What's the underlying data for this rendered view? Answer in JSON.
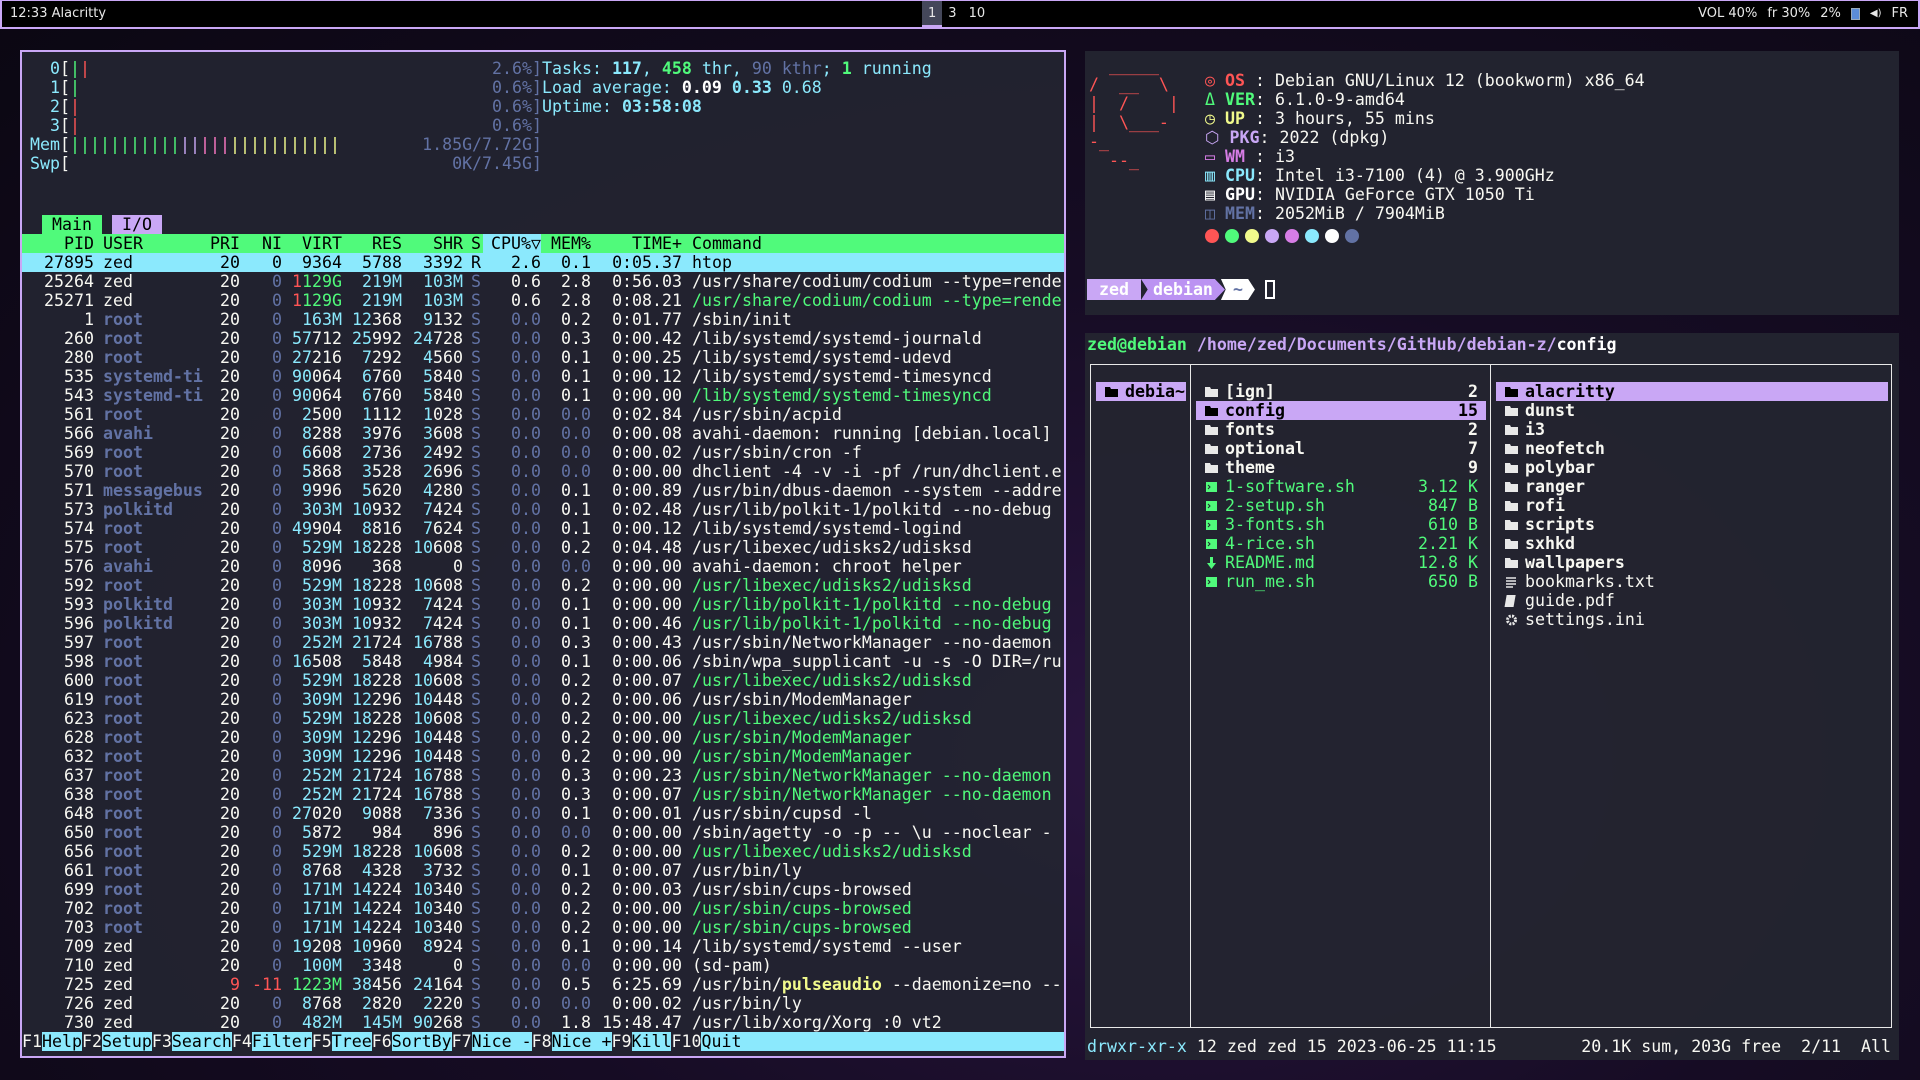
{
  "topbar": {
    "time": "12:33",
    "window": "Alacritty",
    "workspaces": [
      "1",
      "3",
      "10"
    ],
    "active_workspace": "1",
    "status": [
      "VOL 40%",
      "fr 30%",
      "2%",
      "FR"
    ]
  },
  "htop": {
    "cpus": [
      {
        "id": "0",
        "pct": "2.6%",
        "bars": [
          "#50fa7b",
          "#ff5555"
        ]
      },
      {
        "id": "1",
        "pct": "0.6%",
        "bars": [
          "#50fa7b"
        ]
      },
      {
        "id": "2",
        "pct": "0.6%",
        "bars": [
          "#ff5555"
        ]
      },
      {
        "id": "3",
        "pct": "0.6%",
        "bars": [
          "#ff5555"
        ]
      }
    ],
    "mem": {
      "label": "Mem",
      "value": "1.85G/7.72G",
      "segments": [
        {
          "color": "#50fa7b",
          "count": 11
        },
        {
          "color": "#c9a7f5",
          "count": 2
        },
        {
          "color": "#ff79c6",
          "count": 3
        },
        {
          "color": "#f1fa8c",
          "count": 11
        }
      ]
    },
    "swp": {
      "label": "Swp",
      "value": "0K/7.45G"
    },
    "tasks": {
      "label": "Tasks: ",
      "procs": "117",
      "threads": "458",
      "thr": " thr, ",
      "kthr": "90 kthr",
      "sep": "; ",
      "running": "1",
      "running_label": " running"
    },
    "load": {
      "label": "Load average: ",
      "one": "0.09",
      "five": "0.33",
      "fifteen": "0.68"
    },
    "uptime": {
      "label": "Uptime: ",
      "value": "03:58:08"
    },
    "tabs": [
      "Main",
      "I/O"
    ],
    "columns": [
      "PID",
      "USER",
      "PRI",
      "NI",
      "VIRT",
      "RES",
      "SHR",
      "S",
      "CPU%▽",
      "MEM%",
      "TIME+",
      "Command"
    ],
    "highlight_word": "pulseaudio",
    "rows": [
      [
        "27895",
        "zed",
        "20",
        "0",
        "9364",
        "5788",
        "3392",
        "R",
        "2.6",
        "0.1",
        "0:05.37",
        "htop",
        false
      ],
      [
        "25264",
        "zed",
        "20",
        "0",
        "1129G",
        "219M",
        "103M",
        "S",
        "0.6",
        "2.8",
        "0:56.03",
        "/usr/share/codium/codium --type=rende",
        false
      ],
      [
        "25271",
        "zed",
        "20",
        "0",
        "1129G",
        "219M",
        "103M",
        "S",
        "0.6",
        "2.8",
        "0:08.21",
        "/usr/share/codium/codium --type=rende",
        true
      ],
      [
        "1",
        "root",
        "20",
        "0",
        "163M",
        "12368",
        "9132",
        "S",
        "0.0",
        "0.2",
        "0:01.77",
        "/sbin/init",
        false
      ],
      [
        "260",
        "root",
        "20",
        "0",
        "57712",
        "25992",
        "24728",
        "S",
        "0.0",
        "0.3",
        "0:00.42",
        "/lib/systemd/systemd-journald",
        false
      ],
      [
        "280",
        "root",
        "20",
        "0",
        "27216",
        "7292",
        "4560",
        "S",
        "0.0",
        "0.1",
        "0:00.25",
        "/lib/systemd/systemd-udevd",
        false
      ],
      [
        "535",
        "systemd-ti",
        "20",
        "0",
        "90064",
        "6760",
        "5840",
        "S",
        "0.0",
        "0.1",
        "0:00.12",
        "/lib/systemd/systemd-timesyncd",
        false
      ],
      [
        "543",
        "systemd-ti",
        "20",
        "0",
        "90064",
        "6760",
        "5840",
        "S",
        "0.0",
        "0.1",
        "0:00.00",
        "/lib/systemd/systemd-timesyncd",
        true
      ],
      [
        "561",
        "root",
        "20",
        "0",
        "2500",
        "1112",
        "1028",
        "S",
        "0.0",
        "0.0",
        "0:02.84",
        "/usr/sbin/acpid",
        false
      ],
      [
        "566",
        "avahi",
        "20",
        "0",
        "8288",
        "3976",
        "3608",
        "S",
        "0.0",
        "0.0",
        "0:00.08",
        "avahi-daemon: running [debian.local]",
        false
      ],
      [
        "569",
        "root",
        "20",
        "0",
        "6608",
        "2736",
        "2492",
        "S",
        "0.0",
        "0.0",
        "0:00.02",
        "/usr/sbin/cron -f",
        false
      ],
      [
        "570",
        "root",
        "20",
        "0",
        "5868",
        "3528",
        "2696",
        "S",
        "0.0",
        "0.0",
        "0:00.00",
        "dhclient -4 -v -i -pf /run/dhclient.e",
        false
      ],
      [
        "571",
        "messagebus",
        "20",
        "0",
        "9996",
        "5620",
        "4280",
        "S",
        "0.0",
        "0.1",
        "0:00.89",
        "/usr/bin/dbus-daemon --system --addre",
        false
      ],
      [
        "573",
        "polkitd",
        "20",
        "0",
        "303M",
        "10932",
        "7424",
        "S",
        "0.0",
        "0.1",
        "0:02.48",
        "/usr/lib/polkit-1/polkitd --no-debug",
        false
      ],
      [
        "574",
        "root",
        "20",
        "0",
        "49904",
        "8816",
        "7624",
        "S",
        "0.0",
        "0.1",
        "0:00.12",
        "/lib/systemd/systemd-logind",
        false
      ],
      [
        "575",
        "root",
        "20",
        "0",
        "529M",
        "18228",
        "10608",
        "S",
        "0.0",
        "0.2",
        "0:04.48",
        "/usr/libexec/udisks2/udisksd",
        false
      ],
      [
        "576",
        "avahi",
        "20",
        "0",
        "8096",
        "368",
        "0",
        "S",
        "0.0",
        "0.0",
        "0:00.00",
        "avahi-daemon: chroot helper",
        false
      ],
      [
        "592",
        "root",
        "20",
        "0",
        "529M",
        "18228",
        "10608",
        "S",
        "0.0",
        "0.2",
        "0:00.00",
        "/usr/libexec/udisks2/udisksd",
        true
      ],
      [
        "593",
        "polkitd",
        "20",
        "0",
        "303M",
        "10932",
        "7424",
        "S",
        "0.0",
        "0.1",
        "0:00.00",
        "/usr/lib/polkit-1/polkitd --no-debug",
        true
      ],
      [
        "596",
        "polkitd",
        "20",
        "0",
        "303M",
        "10932",
        "7424",
        "S",
        "0.0",
        "0.1",
        "0:00.46",
        "/usr/lib/polkit-1/polkitd --no-debug",
        true
      ],
      [
        "597",
        "root",
        "20",
        "0",
        "252M",
        "21724",
        "16788",
        "S",
        "0.0",
        "0.3",
        "0:00.43",
        "/usr/sbin/NetworkManager --no-daemon",
        false
      ],
      [
        "598",
        "root",
        "20",
        "0",
        "16508",
        "5848",
        "4984",
        "S",
        "0.0",
        "0.1",
        "0:00.06",
        "/sbin/wpa_supplicant -u -s -O DIR=/ru",
        false
      ],
      [
        "600",
        "root",
        "20",
        "0",
        "529M",
        "18228",
        "10608",
        "S",
        "0.0",
        "0.2",
        "0:00.07",
        "/usr/libexec/udisks2/udisksd",
        true
      ],
      [
        "619",
        "root",
        "20",
        "0",
        "309M",
        "12296",
        "10448",
        "S",
        "0.0",
        "0.2",
        "0:00.06",
        "/usr/sbin/ModemManager",
        false
      ],
      [
        "623",
        "root",
        "20",
        "0",
        "529M",
        "18228",
        "10608",
        "S",
        "0.0",
        "0.2",
        "0:00.00",
        "/usr/libexec/udisks2/udisksd",
        true
      ],
      [
        "628",
        "root",
        "20",
        "0",
        "309M",
        "12296",
        "10448",
        "S",
        "0.0",
        "0.2",
        "0:00.00",
        "/usr/sbin/ModemManager",
        true
      ],
      [
        "632",
        "root",
        "20",
        "0",
        "309M",
        "12296",
        "10448",
        "S",
        "0.0",
        "0.2",
        "0:00.00",
        "/usr/sbin/ModemManager",
        true
      ],
      [
        "637",
        "root",
        "20",
        "0",
        "252M",
        "21724",
        "16788",
        "S",
        "0.0",
        "0.3",
        "0:00.23",
        "/usr/sbin/NetworkManager --no-daemon",
        true
      ],
      [
        "638",
        "root",
        "20",
        "0",
        "252M",
        "21724",
        "16788",
        "S",
        "0.0",
        "0.3",
        "0:00.07",
        "/usr/sbin/NetworkManager --no-daemon",
        true
      ],
      [
        "648",
        "root",
        "20",
        "0",
        "27020",
        "9088",
        "7336",
        "S",
        "0.0",
        "0.1",
        "0:00.01",
        "/usr/sbin/cupsd -l",
        false
      ],
      [
        "650",
        "root",
        "20",
        "0",
        "5872",
        "984",
        "896",
        "S",
        "0.0",
        "0.0",
        "0:00.00",
        "/sbin/agetty -o -p -- \\u --noclear -",
        false
      ],
      [
        "656",
        "root",
        "20",
        "0",
        "529M",
        "18228",
        "10608",
        "S",
        "0.0",
        "0.2",
        "0:00.00",
        "/usr/libexec/udisks2/udisksd",
        true
      ],
      [
        "661",
        "root",
        "20",
        "0",
        "8768",
        "4328",
        "3732",
        "S",
        "0.0",
        "0.1",
        "0:00.07",
        "/usr/bin/ly",
        false
      ],
      [
        "699",
        "root",
        "20",
        "0",
        "171M",
        "14224",
        "10340",
        "S",
        "0.0",
        "0.2",
        "0:00.03",
        "/usr/sbin/cups-browsed",
        false
      ],
      [
        "702",
        "root",
        "20",
        "0",
        "171M",
        "14224",
        "10340",
        "S",
        "0.0",
        "0.2",
        "0:00.00",
        "/usr/sbin/cups-browsed",
        true
      ],
      [
        "703",
        "root",
        "20",
        "0",
        "171M",
        "14224",
        "10340",
        "S",
        "0.0",
        "0.2",
        "0:00.00",
        "/usr/sbin/cups-browsed",
        true
      ],
      [
        "709",
        "zed",
        "20",
        "0",
        "19208",
        "10960",
        "8924",
        "S",
        "0.0",
        "0.1",
        "0:00.14",
        "/lib/systemd/systemd --user",
        false
      ],
      [
        "710",
        "zed",
        "20",
        "0",
        "100M",
        "3348",
        "0",
        "S",
        "0.0",
        "0.0",
        "0:00.00",
        "(sd-pam)",
        false
      ],
      [
        "725",
        "zed",
        "9",
        "-11",
        "1223M",
        "38456",
        "24164",
        "S",
        "0.0",
        "0.5",
        "6:25.69",
        "/usr/bin/pulseaudio --daemonize=no --",
        false
      ],
      [
        "726",
        "zed",
        "20",
        "0",
        "8768",
        "2820",
        "2220",
        "S",
        "0.0",
        "0.0",
        "0:00.02",
        "/usr/bin/ly",
        false
      ],
      [
        "730",
        "zed",
        "20",
        "0",
        "482M",
        "145M",
        "90268",
        "S",
        "0.0",
        "1.8",
        "15:48.47",
        "/usr/lib/xorg/Xorg :0 vt2",
        false
      ]
    ],
    "footer": [
      [
        "F1",
        "Help  "
      ],
      [
        "F2",
        "Setup "
      ],
      [
        "F3",
        "Search"
      ],
      [
        "F4",
        "Filter"
      ],
      [
        "F5",
        "Tree  "
      ],
      [
        "F6",
        "SortBy"
      ],
      [
        "F7",
        "Nice -"
      ],
      [
        "F8",
        "Nice +"
      ],
      [
        "F9",
        "Kill  "
      ],
      [
        "F10",
        "Quit"
      ]
    ]
  },
  "neofetch": {
    "logo": [
      "  _____",
      "/  __  \\",
      "|  /    |",
      "|  \\___-",
      "-_",
      "  --_"
    ],
    "info": [
      {
        "icon": "debian-icon",
        "label": "OS ",
        "value": "Debian GNU/Linux 12 (bookworm) x86_64",
        "color": "#ff5555"
      },
      {
        "icon": "linux-icon",
        "label": "VER",
        "value": "6.1.0-9-amd64",
        "color": "#50fa7b"
      },
      {
        "icon": "clock-icon",
        "label": "UP ",
        "value": "3 hours, 55 mins",
        "color": "#f1fa8c"
      },
      {
        "icon": "package-icon",
        "label": "PKG",
        "value": "2022 (dpkg)",
        "color": "#c9a7f5"
      },
      {
        "icon": "monitor-icon",
        "label": "WM ",
        "value": "i3",
        "color": "#d77de6"
      },
      {
        "icon": "cpu-icon",
        "label": "CPU",
        "value": "Intel i3-7100 (4) @ 3.900GHz",
        "color": "#8be9fd"
      },
      {
        "icon": "gpu-icon",
        "label": "GPU",
        "value": "NVIDIA GeForce GTX 1050 Ti",
        "color": "#ffffff"
      },
      {
        "icon": "memory-icon",
        "label": "MEM",
        "value": "2052MiB / 7904MiB",
        "color": "#6272a4"
      }
    ],
    "palette": [
      "#ff5555",
      "#50fa7b",
      "#f1fa8c",
      "#c9a7f5",
      "#d77de6",
      "#8be9fd",
      "#ffffff",
      "#6272a4"
    ],
    "prompt": {
      "user": "zed",
      "host": "debian",
      "dir": "~"
    }
  },
  "ranger": {
    "userhost": "zed@debian",
    "path": "/home/zed/Documents/GitHub/debian-z/",
    "current": "config",
    "parent": [
      {
        "name": "debia~",
        "type": "dir",
        "selected": true
      }
    ],
    "middle": [
      {
        "name": "[ign]",
        "size": "2",
        "type": "dir"
      },
      {
        "name": "config",
        "size": "15",
        "type": "dir",
        "selected": true
      },
      {
        "name": "fonts",
        "size": "2",
        "type": "dir"
      },
      {
        "name": "optional",
        "size": "7",
        "type": "dir"
      },
      {
        "name": "theme",
        "size": "9",
        "type": "dir"
      },
      {
        "name": "1-software.sh",
        "size": "3.12 K",
        "type": "script"
      },
      {
        "name": "2-setup.sh",
        "size": "847 B",
        "type": "script"
      },
      {
        "name": "3-fonts.sh",
        "size": "610 B",
        "type": "script"
      },
      {
        "name": "4-rice.sh",
        "size": "2.21 K",
        "type": "script"
      },
      {
        "name": "README.md",
        "size": "12.8 K",
        "type": "markdown"
      },
      {
        "name": "run_me.sh",
        "size": "650 B",
        "type": "script"
      }
    ],
    "preview": [
      {
        "name": "alacritty",
        "type": "dir",
        "selected": true
      },
      {
        "name": "dunst",
        "type": "dir"
      },
      {
        "name": "i3",
        "type": "dir"
      },
      {
        "name": "neofetch",
        "type": "dir"
      },
      {
        "name": "polybar",
        "type": "dir"
      },
      {
        "name": "ranger",
        "type": "dir"
      },
      {
        "name": "rofi",
        "type": "dir"
      },
      {
        "name": "scripts",
        "type": "dir"
      },
      {
        "name": "sxhkd",
        "type": "dir"
      },
      {
        "name": "wallpapers",
        "type": "dir"
      },
      {
        "name": "bookmarks.txt",
        "type": "text"
      },
      {
        "name": "guide.pdf",
        "type": "pdf"
      },
      {
        "name": "settings.ini",
        "type": "config"
      }
    ],
    "status": {
      "perms": "drwxr-xr-x",
      "info": " 12 zed zed 15 2023-06-25 11:15",
      "right": "20.1K sum, 203G free  2/11  All"
    }
  }
}
